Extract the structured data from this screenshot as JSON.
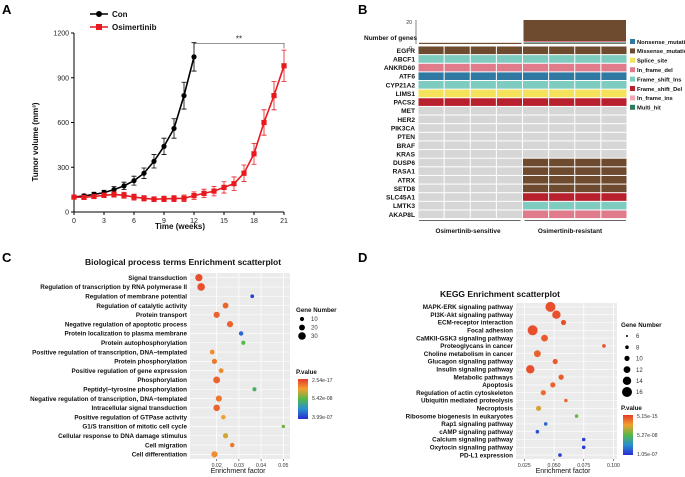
{
  "panels": {
    "a": "A",
    "b": "B",
    "c": "C",
    "d": "D"
  },
  "colors": {
    "con": "#000000",
    "osi": "#e8191f",
    "nonsense": "#2f79a3",
    "missense": "#6e4a2f",
    "splice": "#f3e25a",
    "inframe_del": "#e07b8c",
    "fs_ins": "#7ecbc0",
    "fs_del": "#b8202d",
    "inframe_ins": "#f2a6b3",
    "multi": "#2e7b5e",
    "wild": "#d6d6d6",
    "grad_top": "#e53b2b",
    "grad_mid": "#54b848",
    "grad_bottom": "#2a2ad0"
  },
  "chart_data": [
    {
      "id": "A",
      "type": "line",
      "title": "",
      "xlabel": "Time (weeks)",
      "ylabel": "Tumor volume (mm³)",
      "xlim": [
        0,
        21
      ],
      "ylim": [
        0,
        1200
      ],
      "xticks": [
        0,
        3,
        6,
        9,
        12,
        15,
        18,
        21
      ],
      "yticks": [
        0,
        300,
        600,
        900,
        1200
      ],
      "significance": "**",
      "series": [
        {
          "name": "Con",
          "color": "#000000",
          "marker": "circle",
          "x": [
            0,
            1,
            2,
            3,
            4,
            5,
            6,
            7,
            8,
            9,
            10,
            11,
            12
          ],
          "y": [
            100,
            108,
            118,
            130,
            150,
            175,
            210,
            260,
            340,
            440,
            560,
            780,
            1040
          ],
          "err": [
            10,
            12,
            14,
            16,
            20,
            25,
            30,
            35,
            45,
            55,
            65,
            90,
            95
          ]
        },
        {
          "name": "Osimertinib",
          "color": "#e8191f",
          "marker": "square",
          "x": [
            0,
            1,
            2,
            3,
            4,
            5,
            6,
            7,
            8,
            9,
            10,
            11,
            12,
            13,
            14,
            15,
            16,
            17,
            18,
            19,
            20,
            21
          ],
          "y": [
            100,
            98,
            104,
            112,
            118,
            112,
            100,
            92,
            86,
            88,
            90,
            92,
            110,
            125,
            140,
            165,
            190,
            260,
            390,
            600,
            780,
            980
          ],
          "err": [
            8,
            10,
            12,
            15,
            18,
            20,
            20,
            18,
            16,
            18,
            20,
            22,
            25,
            28,
            32,
            38,
            45,
            55,
            70,
            85,
            95,
            105
          ]
        }
      ]
    },
    {
      "id": "B",
      "type": "heatmap",
      "bar_title": "Number of genes",
      "bar_ticks": [
        0,
        20
      ],
      "groups": [
        "Osimertinib-sensitive",
        "Osimertinib-resistant"
      ],
      "top_bars": [
        1,
        1,
        1,
        1,
        20,
        20,
        20,
        20
      ],
      "genes": [
        "EGFR",
        "ABCF1",
        "ANKRD60",
        "ATF6",
        "CYP21A2",
        "LIMS1",
        "PACS2",
        "MET",
        "HER2",
        "PIK3CA",
        "PTEN",
        "BRAF",
        "KRAS",
        "DUSP6",
        "RASA1",
        "ATRX",
        "SETD8",
        "SLC45A1",
        "LMTK3",
        "AKAP8L"
      ],
      "matrix": [
        [
          "missense",
          "missense",
          "missense",
          "missense",
          "missense",
          "missense",
          "missense",
          "missense"
        ],
        [
          "fs_ins",
          "fs_ins",
          "fs_ins",
          "fs_ins",
          "fs_ins",
          "fs_ins",
          "fs_ins",
          "fs_ins"
        ],
        [
          "inframe_del",
          "inframe_del",
          "inframe_del",
          "inframe_del",
          "inframe_del",
          "inframe_del",
          "inframe_del",
          "inframe_del"
        ],
        [
          "nonsense",
          "nonsense",
          "nonsense",
          "nonsense",
          "nonsense",
          "nonsense",
          "nonsense",
          "nonsense"
        ],
        [
          "fs_ins",
          "fs_ins",
          "fs_ins",
          "fs_ins",
          "fs_ins",
          "fs_ins",
          "fs_ins",
          "fs_ins"
        ],
        [
          "splice",
          "splice",
          "splice",
          "splice",
          "splice",
          "splice",
          "splice",
          "splice"
        ],
        [
          "fs_del",
          "fs_del",
          "fs_del",
          "fs_del",
          "fs_del",
          "fs_del",
          "fs_del",
          "fs_del"
        ],
        [
          "wild",
          "wild",
          "wild",
          "wild",
          "wild",
          "wild",
          "wild",
          "wild"
        ],
        [
          "wild",
          "wild",
          "wild",
          "wild",
          "wild",
          "wild",
          "wild",
          "wild"
        ],
        [
          "wild",
          "wild",
          "wild",
          "wild",
          "wild",
          "wild",
          "wild",
          "wild"
        ],
        [
          "wild",
          "wild",
          "wild",
          "wild",
          "wild",
          "wild",
          "wild",
          "wild"
        ],
        [
          "wild",
          "wild",
          "wild",
          "wild",
          "wild",
          "wild",
          "wild",
          "wild"
        ],
        [
          "wild",
          "wild",
          "wild",
          "wild",
          "wild",
          "wild",
          "wild",
          "wild"
        ],
        [
          "wild",
          "wild",
          "wild",
          "wild",
          "missense",
          "missense",
          "missense",
          "missense"
        ],
        [
          "wild",
          "wild",
          "wild",
          "wild",
          "missense",
          "missense",
          "missense",
          "missense"
        ],
        [
          "wild",
          "wild",
          "wild",
          "wild",
          "missense",
          "missense",
          "missense",
          "missense"
        ],
        [
          "wild",
          "wild",
          "wild",
          "wild",
          "missense",
          "missense",
          "missense",
          "missense"
        ],
        [
          "wild",
          "wild",
          "wild",
          "wild",
          "fs_del",
          "fs_del",
          "fs_del",
          "fs_del"
        ],
        [
          "wild",
          "wild",
          "wild",
          "wild",
          "fs_ins",
          "fs_ins",
          "fs_ins",
          "fs_ins"
        ],
        [
          "wild",
          "wild",
          "wild",
          "wild",
          "inframe_del",
          "inframe_del",
          "inframe_del",
          "inframe_del"
        ]
      ],
      "legend": [
        {
          "key": "nonsense",
          "label": "Nonsense_mutation"
        },
        {
          "key": "missense",
          "label": "Missense_mutation"
        },
        {
          "key": "splice",
          "label": "Splice_site"
        },
        {
          "key": "inframe_del",
          "label": "In_frame_del"
        },
        {
          "key": "fs_ins",
          "label": "Frame_shift_Ins"
        },
        {
          "key": "fs_del",
          "label": "Frame_shift_Del"
        },
        {
          "key": "inframe_ins",
          "label": "In_frame_ins"
        },
        {
          "key": "multi",
          "label": "Multi_hit"
        }
      ]
    },
    {
      "id": "C",
      "type": "scatter",
      "title": "Biological process terms  Enrichment scatterplot",
      "xlabel": "Enrichment factor",
      "xlim": [
        0.008,
        0.053
      ],
      "xticks": [
        0.02,
        0.03,
        0.04,
        0.05
      ],
      "xtick_labels": [
        "0.02",
        "0.03",
        "0.04",
        "0.05"
      ],
      "size_title": "Gene Number",
      "size_legend": [
        10,
        20,
        30
      ],
      "color_title": "P.value",
      "color_ticks": [
        "2.54e-17",
        "5.42e-08",
        "3.99e-07"
      ],
      "terms": [
        "Signal transduction",
        "Regulation of transcription by RNA polymerase II",
        "Regulation of membrane potential",
        "Regulation of catalytic activity",
        "Protein transport",
        "Negative regulation of apoptotic process",
        "Protein localization to plasma membrane",
        "Protein autophosphorylation",
        "Positive regulation of transcription, DNA−templated",
        "Protein phosphorylation",
        "Positive regulation of gene expression",
        "Phosphorylation",
        "Peptidyl−tyrosine phosphorylation",
        "Negative regulation of transcription, DNA−templated",
        "Intracellular signal transduction",
        "Positive regulation of GTPase activity",
        "G1/S transition of mitotic cell cycle",
        "Cellular response to DNA damage stimulus",
        "Cell migration",
        "Cell differentiation"
      ],
      "x": [
        0.012,
        0.013,
        0.036,
        0.024,
        0.02,
        0.026,
        0.031,
        0.032,
        0.018,
        0.019,
        0.022,
        0.02,
        0.037,
        0.021,
        0.02,
        0.023,
        0.05,
        0.024,
        0.027,
        0.019
      ],
      "size": [
        28,
        30,
        8,
        20,
        22,
        22,
        12,
        10,
        14,
        16,
        14,
        26,
        10,
        22,
        24,
        12,
        6,
        16,
        12,
        22
      ],
      "color": [
        0.05,
        0.05,
        0.95,
        0.1,
        0.1,
        0.1,
        0.85,
        0.5,
        0.2,
        0.15,
        0.2,
        0.1,
        0.55,
        0.15,
        0.1,
        0.25,
        0.45,
        0.3,
        0.15,
        0.2
      ]
    },
    {
      "id": "D",
      "type": "scatter",
      "title": "KEGG Enrichment scatterplot",
      "xlabel": "Enrichment factor",
      "xlim": [
        0.018,
        0.103
      ],
      "xticks": [
        0.025,
        0.05,
        0.075,
        0.1
      ],
      "xtick_labels": [
        "0.025",
        "0.050",
        "0.075",
        "0.100"
      ],
      "size_title": "Gene Number",
      "size_legend": [
        6,
        8,
        10,
        12,
        14,
        16
      ],
      "color_title": "P.value",
      "color_ticks": [
        "5.15e-15",
        "5.27e-08",
        "1.05e-07"
      ],
      "terms": [
        "MAPK-ERK signaling pathway",
        "PI3K-Akt signaling pathway",
        "ECM-receptor interaction",
        "Focal adhesion",
        "CaMKII-GSK3 signaling pathway",
        "Proteoglycans in cancer",
        "Choline metabolism in cancer",
        "Glucagon signaling pathway",
        "Insulin signaling pathway",
        "Metabolic pathways",
        "Apoptosis",
        "Regulation of actin cytoskeleton",
        "Ubiquitin mediated proteolysis",
        "Necroptosis",
        "Ribosome biogenesis in eukaryotes",
        "Rap1 signaling pathway",
        "cAMP signaling pathway",
        "Calcium signaling pathway",
        "Oxytocin signaling pathway",
        "PD-L1 expression"
      ],
      "x": [
        0.047,
        0.052,
        0.058,
        0.032,
        0.042,
        0.092,
        0.036,
        0.051,
        0.03,
        0.056,
        0.049,
        0.041,
        0.06,
        0.037,
        0.069,
        0.043,
        0.036,
        0.075,
        0.075,
        0.055
      ],
      "size": [
        16,
        14,
        10,
        16,
        12,
        8,
        12,
        10,
        14,
        10,
        10,
        10,
        8,
        10,
        8,
        8,
        8,
        8,
        8,
        8
      ],
      "color": [
        0.05,
        0.05,
        0.05,
        0.05,
        0.08,
        0.05,
        0.1,
        0.08,
        0.05,
        0.08,
        0.1,
        0.12,
        0.12,
        0.3,
        0.45,
        0.85,
        0.9,
        0.95,
        0.95,
        0.95
      ]
    }
  ]
}
